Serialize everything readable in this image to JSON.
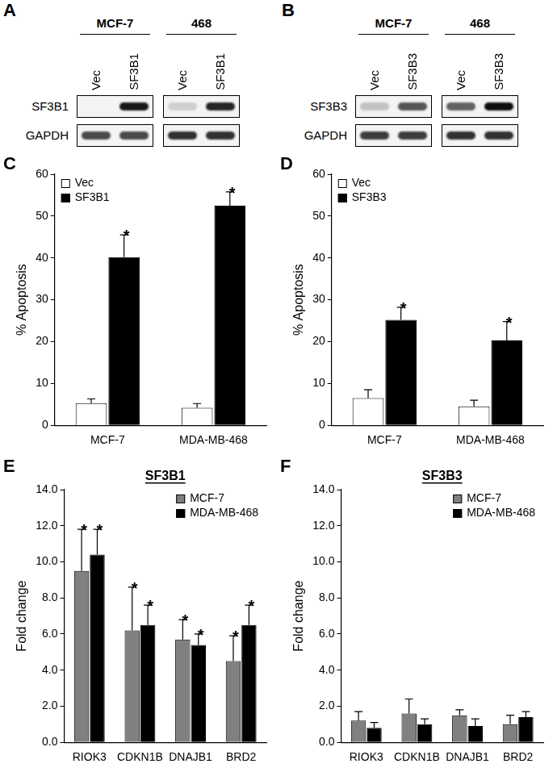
{
  "blots": [
    {
      "panel": "A",
      "groups": [
        "MCF-7",
        "468"
      ],
      "lanes": [
        "Vec",
        "SF3B1",
        "Vec",
        "SF3B1"
      ],
      "rows": [
        {
          "label": "SF3B1",
          "intensity": [
            0.0,
            0.9,
            0.15,
            0.85
          ]
        },
        {
          "label": "GAPDH",
          "intensity": [
            0.7,
            0.7,
            0.8,
            0.8
          ]
        }
      ]
    },
    {
      "panel": "B",
      "groups": [
        "MCF-7",
        "468"
      ],
      "lanes": [
        "Vec",
        "SF3B3",
        "Vec",
        "SF3B3"
      ],
      "rows": [
        {
          "label": "SF3B3",
          "intensity": [
            0.2,
            0.65,
            0.6,
            0.95
          ]
        },
        {
          "label": "GAPDH",
          "intensity": [
            0.75,
            0.75,
            0.8,
            0.8
          ]
        }
      ]
    }
  ],
  "chart_data": [
    {
      "panel": "C",
      "type": "bar",
      "categories": [
        "MCF-7",
        "MDA-MB-468"
      ],
      "y_label": "% Apoptosis",
      "ylim": [
        0,
        60
      ],
      "yticks": [
        0,
        10,
        20,
        30,
        40,
        50,
        60
      ],
      "grid": false,
      "legend": "upper left",
      "series": [
        {
          "name": "Vec",
          "color": "#ffffff",
          "values": [
            5.3,
            4.2
          ],
          "error": [
            1.0,
            1.0
          ]
        },
        {
          "name": "SF3B1",
          "color": "#000000",
          "values": [
            40.2,
            52.5
          ],
          "error": [
            5.3,
            3.3
          ],
          "significance": [
            "*",
            "*"
          ]
        }
      ]
    },
    {
      "panel": "D",
      "type": "bar",
      "categories": [
        "MCF-7",
        "MDA-MB-468"
      ],
      "y_label": "% Apoptosis",
      "ylim": [
        0,
        60
      ],
      "yticks": [
        0,
        10,
        20,
        30,
        40,
        50,
        60
      ],
      "grid": false,
      "legend": "upper left",
      "series": [
        {
          "name": "Vec",
          "color": "#ffffff",
          "values": [
            6.5,
            4.5
          ],
          "error": [
            2.0,
            1.5
          ]
        },
        {
          "name": "SF3B3",
          "color": "#000000",
          "values": [
            25.2,
            20.3
          ],
          "error": [
            3.0,
            4.5
          ],
          "significance": [
            "*",
            "*"
          ]
        }
      ]
    },
    {
      "panel": "E",
      "type": "bar",
      "title": "SF3B1",
      "categories": [
        "RIOK3",
        "CDKN1B",
        "DNAJB1",
        "BRD2"
      ],
      "y_label": "Fold change",
      "ylim": [
        0,
        14
      ],
      "yticks": [
        {
          "value": 0,
          "label": "0.0"
        },
        {
          "value": 2,
          "label": "2.0"
        },
        {
          "value": 4,
          "label": "4.0"
        },
        {
          "value": 6,
          "label": "6.0"
        },
        {
          "value": 8,
          "label": "8.0"
        },
        {
          "value": 10,
          "label": "10.0"
        },
        {
          "value": 12,
          "label": "12.0"
        },
        {
          "value": 14,
          "label": "14.0"
        }
      ],
      "grid": false,
      "legend": "upper right",
      "series": [
        {
          "name": "MCF-7",
          "color": "#808080",
          "values": [
            9.5,
            6.2,
            5.7,
            4.5
          ],
          "error": [
            2.3,
            2.4,
            1.1,
            1.4
          ],
          "significance": [
            "*",
            "*",
            "*",
            "*"
          ]
        },
        {
          "name": "MDA-MB-468",
          "color": "#000000",
          "values": [
            10.4,
            6.5,
            5.4,
            6.5
          ],
          "error": [
            1.4,
            1.1,
            0.6,
            1.1
          ],
          "significance": [
            "*",
            "*",
            "*",
            "*"
          ]
        }
      ]
    },
    {
      "panel": "F",
      "type": "bar",
      "title": "SF3B3",
      "categories": [
        "RIOK3",
        "CDKN1B",
        "DNAJB1",
        "BRD2"
      ],
      "y_label": "Fold change",
      "ylim": [
        0,
        14
      ],
      "yticks": [
        {
          "value": 0,
          "label": "0.0"
        },
        {
          "value": 2,
          "label": "2.0"
        },
        {
          "value": 4,
          "label": "4.0"
        },
        {
          "value": 6,
          "label": "6.0"
        },
        {
          "value": 8,
          "label": "8.0"
        },
        {
          "value": 10,
          "label": "10.0"
        },
        {
          "value": 12,
          "label": "12.0"
        },
        {
          "value": 14,
          "label": "14.0"
        }
      ],
      "grid": false,
      "legend": "upper right",
      "series": [
        {
          "name": "MCF-7",
          "color": "#808080",
          "values": [
            1.2,
            1.6,
            1.5,
            1.0
          ],
          "error": [
            0.5,
            0.8,
            0.3,
            0.5
          ]
        },
        {
          "name": "MDA-MB-468",
          "color": "#000000",
          "values": [
            0.8,
            1.0,
            0.9,
            1.4
          ],
          "error": [
            0.3,
            0.3,
            0.4,
            0.3
          ]
        }
      ]
    }
  ]
}
